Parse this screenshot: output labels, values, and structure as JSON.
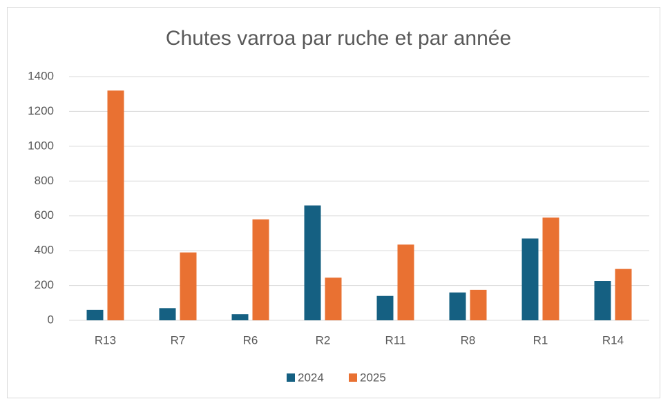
{
  "chart_data": {
    "type": "bar",
    "title": "Chutes varroa par ruche et par année",
    "categories": [
      "R13",
      "R7",
      "R6",
      "R2",
      "R11",
      "R8",
      "R1",
      "R14"
    ],
    "series": [
      {
        "name": "2024",
        "color": "#156082",
        "values": [
          60,
          70,
          35,
          660,
          140,
          160,
          470,
          226
        ]
      },
      {
        "name": "2025",
        "color": "#e97132",
        "values": [
          1320,
          390,
          580,
          245,
          435,
          175,
          590,
          295
        ]
      }
    ],
    "ylim": [
      0,
      1400
    ],
    "yticks": [
      0,
      200,
      400,
      600,
      800,
      1000,
      1200,
      1400
    ],
    "grid": true,
    "legend": "bottom"
  }
}
